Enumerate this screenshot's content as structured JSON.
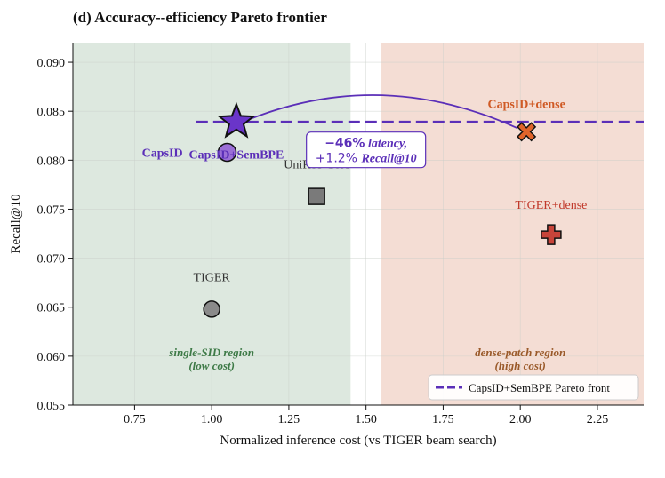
{
  "chart_data": {
    "type": "scatter",
    "title": "(d) Accuracy--efficiency Pareto frontier",
    "xlabel": "Normalized inference cost (vs TIGER beam search)",
    "ylabel": "Recall@10",
    "xlim": [
      0.55,
      2.4
    ],
    "ylim": [
      0.055,
      0.092
    ],
    "xticks": [
      "0.75",
      "1.00",
      "1.25",
      "1.50",
      "1.75",
      "2.00",
      "2.25"
    ],
    "yticks": [
      "0.055",
      "0.060",
      "0.065",
      "0.070",
      "0.075",
      "0.080",
      "0.085",
      "0.090"
    ],
    "grid": true,
    "regions": [
      {
        "x0": 0.55,
        "x1": 1.45,
        "color": "#dde8df",
        "label": "single-SID region",
        "sublabel": "(low cost)",
        "label_x": 1.0,
        "label_y": 0.06,
        "label_color": "#3e7a47"
      },
      {
        "x0": 1.55,
        "x1": 2.4,
        "color": "#f4ddd4",
        "label": "dense-patch region",
        "sublabel": "(high cost)",
        "label_x": 2.0,
        "label_y": 0.06,
        "label_color": "#9a5a2a"
      }
    ],
    "points": [
      {
        "name": "TIGER",
        "x": 1.0,
        "y": 0.0648,
        "marker": "circle",
        "color": "#8a8a8a",
        "label_color": "#333333",
        "label_bold": false,
        "label_dy": 0.0033
      },
      {
        "name": "UniRec-CoA",
        "x": 1.34,
        "y": 0.0763,
        "marker": "square",
        "color": "#7a7a7a",
        "label_color": "#333333",
        "label_bold": false,
        "label_dy": 0.0033
      },
      {
        "name": "CapsID",
        "x": 1.05,
        "y": 0.0808,
        "marker": "circle",
        "color": "#9b6fd6",
        "label_color": "#5b2fb8",
        "label_bold": true,
        "label_dx": -0.21,
        "label_dy": 0.0
      },
      {
        "name": "CapsID+SemBPE",
        "x": 1.08,
        "y": 0.0839,
        "marker": "star",
        "color": "#6a35c9",
        "label_color": "#5b2fb8",
        "label_bold": true,
        "label_dx": 0.0,
        "label_dy": -0.0033
      },
      {
        "name": "CapsID+dense",
        "x": 2.02,
        "y": 0.0829,
        "marker": "x",
        "color": "#e0642a",
        "label_color": "#d05a25",
        "label_bold": true,
        "label_dx": 0.0,
        "label_dy": 0.0029
      },
      {
        "name": "TIGER+dense",
        "x": 2.1,
        "y": 0.0724,
        "marker": "plus",
        "color": "#c8443a",
        "label_color": "#c0392b",
        "label_bold": false,
        "label_dx": 0.0,
        "label_dy": 0.0031
      }
    ],
    "pareto_front": {
      "name": "CapsID+SemBPE Pareto front",
      "y": 0.0839,
      "x_start": 0.95,
      "x_end": 2.4,
      "color": "#5b2fb8"
    },
    "arrow": {
      "from": [
        1.08,
        0.0839
      ],
      "to": [
        2.02,
        0.0829
      ],
      "peak_y": 0.0865,
      "color": "#5b2fb8"
    },
    "annotation": {
      "line1_bold": "−46%",
      "line1_rest": " latency,",
      "line2_plain": "+1.2% ",
      "line2_italic": "Recall@10",
      "x": 1.5,
      "y": 0.0806,
      "color": "#5b2fb8"
    },
    "legend": {
      "position": "lower-right",
      "label": "CapsID+SemBPE Pareto front"
    }
  }
}
